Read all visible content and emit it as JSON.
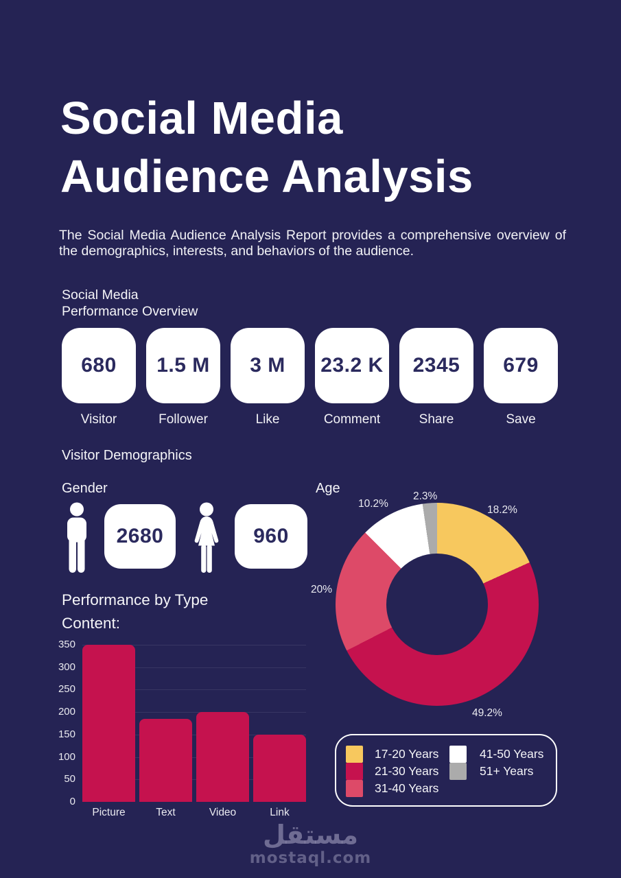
{
  "colors": {
    "background": "#252354",
    "card_background": "#FFFFFF",
    "card_text": "#2B2A5E",
    "crimson": "#C5124E",
    "pink": "#DD4A68",
    "yellow": "#F7C85E",
    "gray": "#ABABAB",
    "white": "#FFFFFF"
  },
  "header": {
    "title_line1": "Social Media",
    "title_line2": "Audience Analysis",
    "description": "The Social Media Audience Analysis Report provides a comprehensive overview of the demographics, interests, and behaviors of the audience."
  },
  "performance_overview": {
    "heading_line1": "Social Media",
    "heading_line2": "Performance Overview",
    "stats": [
      {
        "value": "680",
        "label": "Visitor"
      },
      {
        "value": "1.5 M",
        "label": "Follower"
      },
      {
        "value": "3 M",
        "label": "Like"
      },
      {
        "value": "23.2 K",
        "label": "Comment"
      },
      {
        "value": "2345",
        "label": "Share"
      },
      {
        "value": "679",
        "label": "Save"
      }
    ]
  },
  "demographics": {
    "heading": "Visitor Demographics",
    "gender": {
      "label": "Gender",
      "male_count": "2680",
      "female_count": "960"
    },
    "age_label": "Age"
  },
  "content_performance": {
    "heading_line1": "Performance by Type",
    "heading_line2": "Content:"
  },
  "watermark": {
    "arabic": "مستقل",
    "domain": "mostaql.com"
  },
  "chart_data": [
    {
      "type": "pie",
      "subtype": "donut",
      "title": "Age",
      "start_angle_deg": 0,
      "direction": "clockwise",
      "legend_position": "below-right",
      "legend_columns": [
        [
          0,
          1,
          2
        ],
        [
          3,
          4
        ]
      ],
      "segments": [
        {
          "label": "17-20 Years",
          "value": 18.2,
          "display": "18.2%",
          "color": "#F7C85E"
        },
        {
          "label": "21-30 Years",
          "value": 49.2,
          "display": "49.2%",
          "color": "#C5124E"
        },
        {
          "label": "31-40 Years",
          "value": 20,
          "display": "20%",
          "color": "#DD4A68"
        },
        {
          "label": "41-50 Years",
          "value": 10.2,
          "display": "10.2%",
          "color": "#FFFFFF"
        },
        {
          "label": "51+ Years",
          "value": 2.3,
          "display": "2.3%",
          "color": "#ABABAB"
        }
      ]
    },
    {
      "type": "bar",
      "title": "Performance by Type Content:",
      "categories": [
        "Picture",
        "Text",
        "Video",
        "Link"
      ],
      "values": [
        350,
        185,
        200,
        150
      ],
      "xlabel": "",
      "ylabel": "",
      "ylim": [
        0,
        350
      ],
      "yticks": [
        0,
        50,
        100,
        150,
        200,
        250,
        300,
        350
      ],
      "grid": true,
      "legend_position": "none",
      "bar_color": "#C5124E"
    }
  ]
}
